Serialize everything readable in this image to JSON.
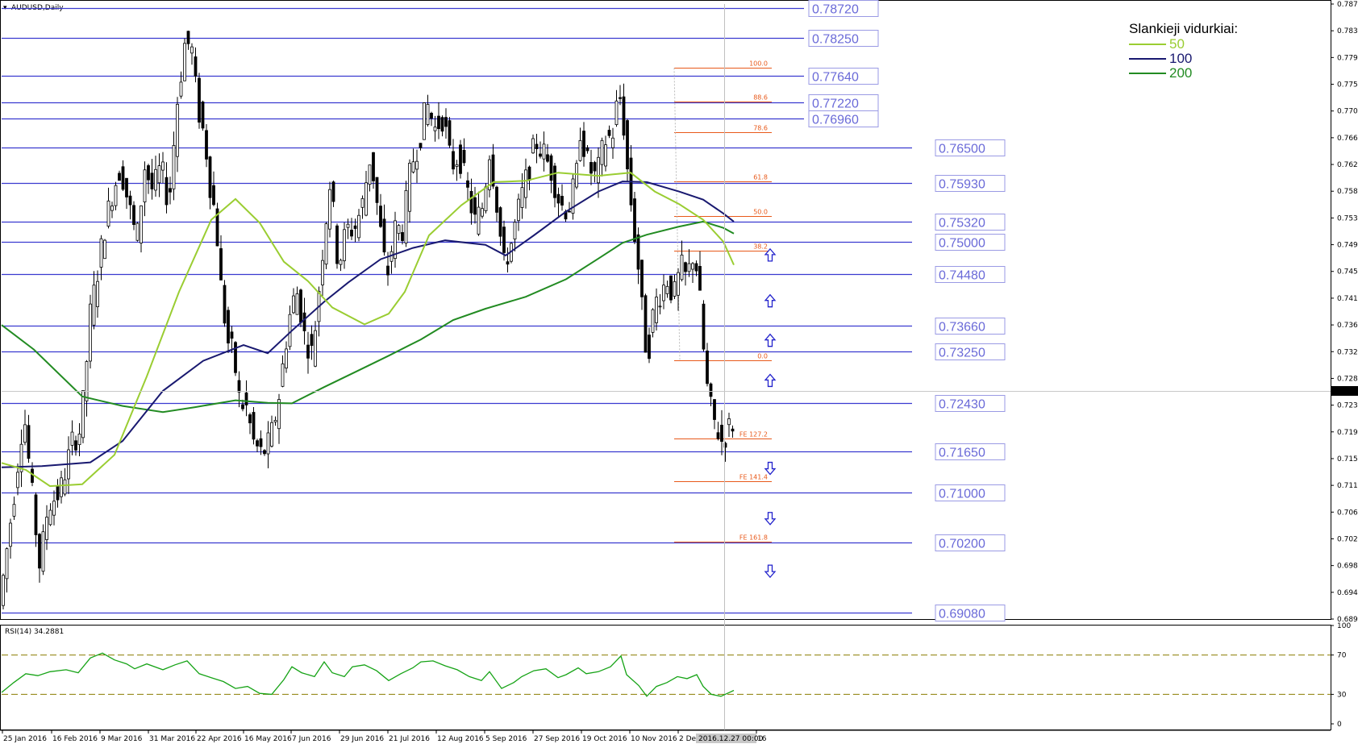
{
  "chart_data": {
    "type": "candlestick",
    "symbol_label": "AUDUSD,Daily",
    "last_price": "0.72126",
    "x_ticks": [
      "25 Jan 2016",
      "16 Feb 2016",
      "9 Mar 2016",
      "31 Mar 2016",
      "22 Apr 2016",
      "16 May 2016",
      "7 Jun 2016",
      "29 Jun 2016",
      "21 Jul 2016",
      "12 Aug 2016",
      "5 Sep 2016",
      "27 Sep 2016",
      "19 Oct 2016",
      "10 Nov 2016",
      "2 Dec 2016",
      "16"
    ],
    "cursor_date": "2016.12.27 00:00",
    "y_ticks": [
      "0.78790",
      "0.78360",
      "0.77940",
      "0.77510",
      "0.77080",
      "0.76660",
      "0.76230",
      "0.75800",
      "0.75380",
      "0.74950",
      "0.74520",
      "0.74100",
      "0.73670",
      "0.73240",
      "0.72820",
      "0.72390",
      "0.71970",
      "0.71540",
      "0.71110",
      "0.70690",
      "0.70260",
      "0.69830",
      "0.69410",
      "0.68980"
    ],
    "ylim": [
      0.6898,
      0.7879
    ],
    "levels": [
      {
        "label": "0.78720",
        "value": 0.7872,
        "end": "short"
      },
      {
        "label": "0.78250",
        "value": 0.7825,
        "end": "short"
      },
      {
        "label": "0.77640",
        "value": 0.7764,
        "end": "short"
      },
      {
        "label": "0.77220",
        "value": 0.7722,
        "end": "short"
      },
      {
        "label": "0.76960",
        "value": 0.7696,
        "end": "short"
      },
      {
        "label": "0.76500",
        "value": 0.765,
        "end": "long"
      },
      {
        "label": "0.75930",
        "value": 0.7593,
        "end": "long"
      },
      {
        "label": "0.75320",
        "value": 0.7532,
        "end": "long"
      },
      {
        "label": "0.75000",
        "value": 0.75,
        "end": "long"
      },
      {
        "label": "0.74480",
        "value": 0.7448,
        "end": "long"
      },
      {
        "label": "0.73660",
        "value": 0.7366,
        "end": "long"
      },
      {
        "label": "0.73250",
        "value": 0.7325,
        "end": "long"
      },
      {
        "label": "0.72430",
        "value": 0.7243,
        "end": "long"
      },
      {
        "label": "0.71650",
        "value": 0.7165,
        "end": "long"
      },
      {
        "label": "0.71000",
        "value": 0.71,
        "end": "long"
      },
      {
        "label": "0.70200",
        "value": 0.702,
        "end": "long"
      },
      {
        "label": "0.69080",
        "value": 0.6908,
        "end": "long"
      }
    ],
    "fib_levels": [
      {
        "label": "100.0",
        "value": 0.7777
      },
      {
        "label": "88.6",
        "value": 0.7723
      },
      {
        "label": "78.6",
        "value": 0.7675
      },
      {
        "label": "61.8",
        "value": 0.7596
      },
      {
        "label": "50.0",
        "value": 0.7541
      },
      {
        "label": "38.2",
        "value": 0.7485
      },
      {
        "label": "0.0",
        "value": 0.7311
      },
      {
        "label": "FE 127.2",
        "value": 0.7186
      },
      {
        "label": "FE 141.4",
        "value": 0.7118
      },
      {
        "label": "FE 161.8",
        "value": 0.7022
      }
    ],
    "arrows": [
      {
        "dir": "up",
        "value": 0.7478
      },
      {
        "dir": "up",
        "value": 0.7405
      },
      {
        "dir": "up",
        "value": 0.7342
      },
      {
        "dir": "up",
        "value": 0.7278
      },
      {
        "dir": "down",
        "value": 0.7139
      },
      {
        "dir": "down",
        "value": 0.7059
      },
      {
        "dir": "down",
        "value": 0.6975
      }
    ],
    "ma_legend": {
      "title": "Slankieji vidurkiai:",
      "items": [
        {
          "name": "50",
          "color": "#9acd32"
        },
        {
          "name": "100",
          "color": "#191970"
        },
        {
          "name": "200",
          "color": "#228b22"
        }
      ]
    },
    "ma50": [
      [
        0,
        0.7147
      ],
      [
        30,
        0.7136
      ],
      [
        60,
        0.711
      ],
      [
        100,
        0.7113
      ],
      [
        140,
        0.716
      ],
      [
        180,
        0.7285
      ],
      [
        220,
        0.742
      ],
      [
        260,
        0.7535
      ],
      [
        290,
        0.7568
      ],
      [
        320,
        0.753
      ],
      [
        350,
        0.7468
      ],
      [
        380,
        0.7437
      ],
      [
        410,
        0.7395
      ],
      [
        450,
        0.7368
      ],
      [
        480,
        0.7385
      ],
      [
        500,
        0.742
      ],
      [
        530,
        0.751
      ],
      [
        570,
        0.7558
      ],
      [
        610,
        0.7595
      ],
      [
        650,
        0.7597
      ],
      [
        690,
        0.761
      ],
      [
        740,
        0.7605
      ],
      [
        780,
        0.761
      ],
      [
        810,
        0.758
      ],
      [
        840,
        0.756
      ],
      [
        870,
        0.7535
      ],
      [
        895,
        0.75
      ],
      [
        908,
        0.7463
      ]
    ],
    "ma100": [
      [
        0,
        0.714
      ],
      [
        50,
        0.7142
      ],
      [
        110,
        0.7148
      ],
      [
        150,
        0.7182
      ],
      [
        200,
        0.7262
      ],
      [
        250,
        0.731
      ],
      [
        300,
        0.7335
      ],
      [
        330,
        0.7322
      ],
      [
        360,
        0.7358
      ],
      [
        400,
        0.7404
      ],
      [
        430,
        0.7435
      ],
      [
        470,
        0.7472
      ],
      [
        510,
        0.749
      ],
      [
        550,
        0.7502
      ],
      [
        600,
        0.7495
      ],
      [
        625,
        0.7478
      ],
      [
        660,
        0.751
      ],
      [
        700,
        0.7548
      ],
      [
        740,
        0.758
      ],
      [
        770,
        0.7596
      ],
      [
        800,
        0.7595
      ],
      [
        840,
        0.758
      ],
      [
        870,
        0.7567
      ],
      [
        895,
        0.7545
      ],
      [
        908,
        0.7532
      ]
    ],
    "ma200": [
      [
        0,
        0.7367
      ],
      [
        40,
        0.7328
      ],
      [
        100,
        0.7253
      ],
      [
        150,
        0.7238
      ],
      [
        200,
        0.7228
      ],
      [
        240,
        0.7236
      ],
      [
        290,
        0.7247
      ],
      [
        330,
        0.7243
      ],
      [
        360,
        0.7242
      ],
      [
        400,
        0.7268
      ],
      [
        440,
        0.7293
      ],
      [
        480,
        0.7318
      ],
      [
        520,
        0.7344
      ],
      [
        560,
        0.7375
      ],
      [
        600,
        0.7393
      ],
      [
        650,
        0.7412
      ],
      [
        700,
        0.744
      ],
      [
        740,
        0.7473
      ],
      [
        770,
        0.7498
      ],
      [
        800,
        0.7511
      ],
      [
        840,
        0.7524
      ],
      [
        870,
        0.7532
      ],
      [
        895,
        0.7522
      ],
      [
        908,
        0.7513
      ]
    ],
    "price_path": [
      [
        0,
        0.692
      ],
      [
        10,
        0.702
      ],
      [
        20,
        0.712
      ],
      [
        30,
        0.723
      ],
      [
        40,
        0.71
      ],
      [
        50,
        0.698
      ],
      [
        60,
        0.708
      ],
      [
        75,
        0.71
      ],
      [
        90,
        0.718
      ],
      [
        100,
        0.72
      ],
      [
        105,
        0.726
      ],
      [
        112,
        0.738
      ],
      [
        120,
        0.744
      ],
      [
        130,
        0.752
      ],
      [
        140,
        0.758
      ],
      [
        150,
        0.762
      ],
      [
        160,
        0.756
      ],
      [
        170,
        0.75
      ],
      [
        180,
        0.762
      ],
      [
        190,
        0.758
      ],
      [
        200,
        0.762
      ],
      [
        210,
        0.756
      ],
      [
        220,
        0.772
      ],
      [
        230,
        0.782
      ],
      [
        238,
        0.781
      ],
      [
        245,
        0.772
      ],
      [
        255,
        0.766
      ],
      [
        262,
        0.758
      ],
      [
        268,
        0.754
      ],
      [
        275,
        0.742
      ],
      [
        283,
        0.734
      ],
      [
        290,
        0.732
      ],
      [
        298,
        0.724
      ],
      [
        305,
        0.724
      ],
      [
        315,
        0.718
      ],
      [
        325,
        0.716
      ],
      [
        335,
        0.718
      ],
      [
        345,
        0.724
      ],
      [
        355,
        0.734
      ],
      [
        362,
        0.74
      ],
      [
        370,
        0.742
      ],
      [
        378,
        0.735
      ],
      [
        388,
        0.732
      ],
      [
        400,
        0.748
      ],
      [
        410,
        0.76
      ],
      [
        420,
        0.746
      ],
      [
        430,
        0.752
      ],
      [
        440,
        0.752
      ],
      [
        450,
        0.756
      ],
      [
        460,
        0.764
      ],
      [
        470,
        0.754
      ],
      [
        480,
        0.744
      ],
      [
        490,
        0.752
      ],
      [
        500,
        0.752
      ],
      [
        510,
        0.762
      ],
      [
        520,
        0.766
      ],
      [
        530,
        0.772
      ],
      [
        540,
        0.768
      ],
      [
        550,
        0.77
      ],
      [
        560,
        0.762
      ],
      [
        570,
        0.764
      ],
      [
        580,
        0.758
      ],
      [
        590,
        0.753
      ],
      [
        600,
        0.756
      ],
      [
        607,
        0.765
      ],
      [
        615,
        0.758
      ],
      [
        625,
        0.746
      ],
      [
        635,
        0.75
      ],
      [
        645,
        0.756
      ],
      [
        655,
        0.761
      ],
      [
        665,
        0.766
      ],
      [
        675,
        0.764
      ],
      [
        685,
        0.761
      ],
      [
        695,
        0.756
      ],
      [
        705,
        0.755
      ],
      [
        715,
        0.76
      ],
      [
        720,
        0.768
      ],
      [
        730,
        0.762
      ],
      [
        740,
        0.76
      ],
      [
        750,
        0.766
      ],
      [
        760,
        0.767
      ],
      [
        768,
        0.774
      ],
      [
        773,
        0.77
      ],
      [
        778,
        0.762
      ],
      [
        785,
        0.754
      ],
      [
        792,
        0.746
      ],
      [
        800,
        0.734
      ],
      [
        805,
        0.733
      ],
      [
        812,
        0.74
      ],
      [
        820,
        0.742
      ],
      [
        828,
        0.744
      ],
      [
        836,
        0.741
      ],
      [
        845,
        0.746
      ],
      [
        852,
        0.744
      ],
      [
        860,
        0.748
      ],
      [
        866,
        0.745
      ],
      [
        872,
        0.734
      ],
      [
        878,
        0.726
      ],
      [
        884,
        0.722
      ],
      [
        890,
        0.72
      ],
      [
        896,
        0.718
      ],
      [
        903,
        0.72
      ],
      [
        908,
        0.721
      ]
    ],
    "rsi": {
      "label": "RSI(14) 34.2881",
      "y_ticks": [
        "100",
        "70",
        "30",
        "0"
      ],
      "ylim": [
        0,
        100
      ],
      "levels": [
        70,
        30
      ],
      "values": [
        [
          0,
          32
        ],
        [
          15,
          42
        ],
        [
          30,
          51
        ],
        [
          45,
          49
        ],
        [
          60,
          53
        ],
        [
          80,
          55
        ],
        [
          95,
          52
        ],
        [
          110,
          67
        ],
        [
          125,
          72
        ],
        [
          140,
          65
        ],
        [
          155,
          61
        ],
        [
          165,
          56
        ],
        [
          180,
          61
        ],
        [
          200,
          55
        ],
        [
          215,
          60
        ],
        [
          230,
          64
        ],
        [
          245,
          51
        ],
        [
          260,
          47
        ],
        [
          275,
          43
        ],
        [
          290,
          36
        ],
        [
          305,
          38
        ],
        [
          320,
          31
        ],
        [
          335,
          30
        ],
        [
          350,
          45
        ],
        [
          360,
          58
        ],
        [
          372,
          52
        ],
        [
          388,
          48
        ],
        [
          400,
          63
        ],
        [
          410,
          52
        ],
        [
          425,
          48
        ],
        [
          435,
          58
        ],
        [
          450,
          60
        ],
        [
          465,
          54
        ],
        [
          480,
          44
        ],
        [
          495,
          51
        ],
        [
          510,
          57
        ],
        [
          520,
          63
        ],
        [
          535,
          64
        ],
        [
          550,
          59
        ],
        [
          565,
          55
        ],
        [
          580,
          48
        ],
        [
          595,
          44
        ],
        [
          605,
          53
        ],
        [
          620,
          36
        ],
        [
          635,
          42
        ],
        [
          645,
          48
        ],
        [
          660,
          54
        ],
        [
          675,
          56
        ],
        [
          690,
          47
        ],
        [
          700,
          50
        ],
        [
          715,
          57
        ],
        [
          725,
          51
        ],
        [
          740,
          53
        ],
        [
          755,
          58
        ],
        [
          768,
          69
        ],
        [
          775,
          50
        ],
        [
          790,
          39
        ],
        [
          800,
          28
        ],
        [
          812,
          38
        ],
        [
          825,
          42
        ],
        [
          838,
          48
        ],
        [
          850,
          46
        ],
        [
          862,
          50
        ],
        [
          870,
          38
        ],
        [
          880,
          30
        ],
        [
          892,
          28
        ],
        [
          900,
          31
        ],
        [
          908,
          34
        ]
      ]
    }
  }
}
